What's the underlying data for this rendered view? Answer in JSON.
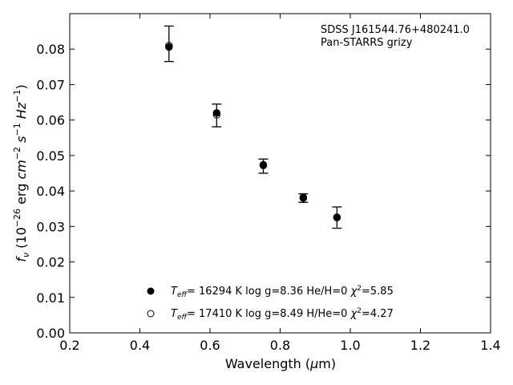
{
  "chart_data": {
    "type": "scatter",
    "annotations": [
      "SDSS J161544.76+480241.0",
      "Pan-STARRS grizy"
    ],
    "xlabel_main": "Wavelength (",
    "xlabel_mu": "μ",
    "xlabel_unit": "m)",
    "xlim": [
      0.2,
      1.4
    ],
    "ylim": [
      0.0,
      0.09
    ],
    "x_ticks": [
      0.2,
      0.4,
      0.6,
      0.8,
      1.0,
      1.2,
      1.4
    ],
    "x_tick_labels": [
      "0.2",
      "0.4",
      "0.6",
      "0.8",
      "1.0",
      "1.2",
      "1.4"
    ],
    "y_ticks": [
      0.0,
      0.01,
      0.02,
      0.03,
      0.04,
      0.05,
      0.06,
      0.07,
      0.08
    ],
    "y_tick_labels": [
      "0.00",
      "0.01",
      "0.02",
      "0.03",
      "0.04",
      "0.05",
      "0.06",
      "0.07",
      "0.08"
    ],
    "observed": [
      {
        "x": 0.483,
        "y": 0.0815,
        "err": 0.005
      },
      {
        "x": 0.619,
        "y": 0.0613,
        "err": 0.0032
      },
      {
        "x": 0.752,
        "y": 0.047,
        "err": 0.002
      },
      {
        "x": 0.866,
        "y": 0.038,
        "err": 0.0012
      },
      {
        "x": 0.962,
        "y": 0.0325,
        "err": 0.003
      }
    ],
    "series": [
      {
        "marker": "filled",
        "label_teff_val": "= 16294 K  log g=8.36  He/H=0  ",
        "label_chi_val": "=5.85",
        "values": [
          {
            "x": 0.483,
            "y": 0.0806
          },
          {
            "x": 0.619,
            "y": 0.062
          },
          {
            "x": 0.752,
            "y": 0.0474
          },
          {
            "x": 0.866,
            "y": 0.0382
          },
          {
            "x": 0.962,
            "y": 0.0326
          }
        ]
      },
      {
        "marker": "open",
        "label_teff_val": "= 17410 K  log g=8.49  H/He=0  ",
        "label_chi_val": "=4.27",
        "values": [
          {
            "x": 0.483,
            "y": 0.081
          },
          {
            "x": 0.619,
            "y": 0.0615
          },
          {
            "x": 0.752,
            "y": 0.0472
          },
          {
            "x": 0.866,
            "y": 0.038
          },
          {
            "x": 0.962,
            "y": 0.0325
          }
        ]
      }
    ]
  }
}
